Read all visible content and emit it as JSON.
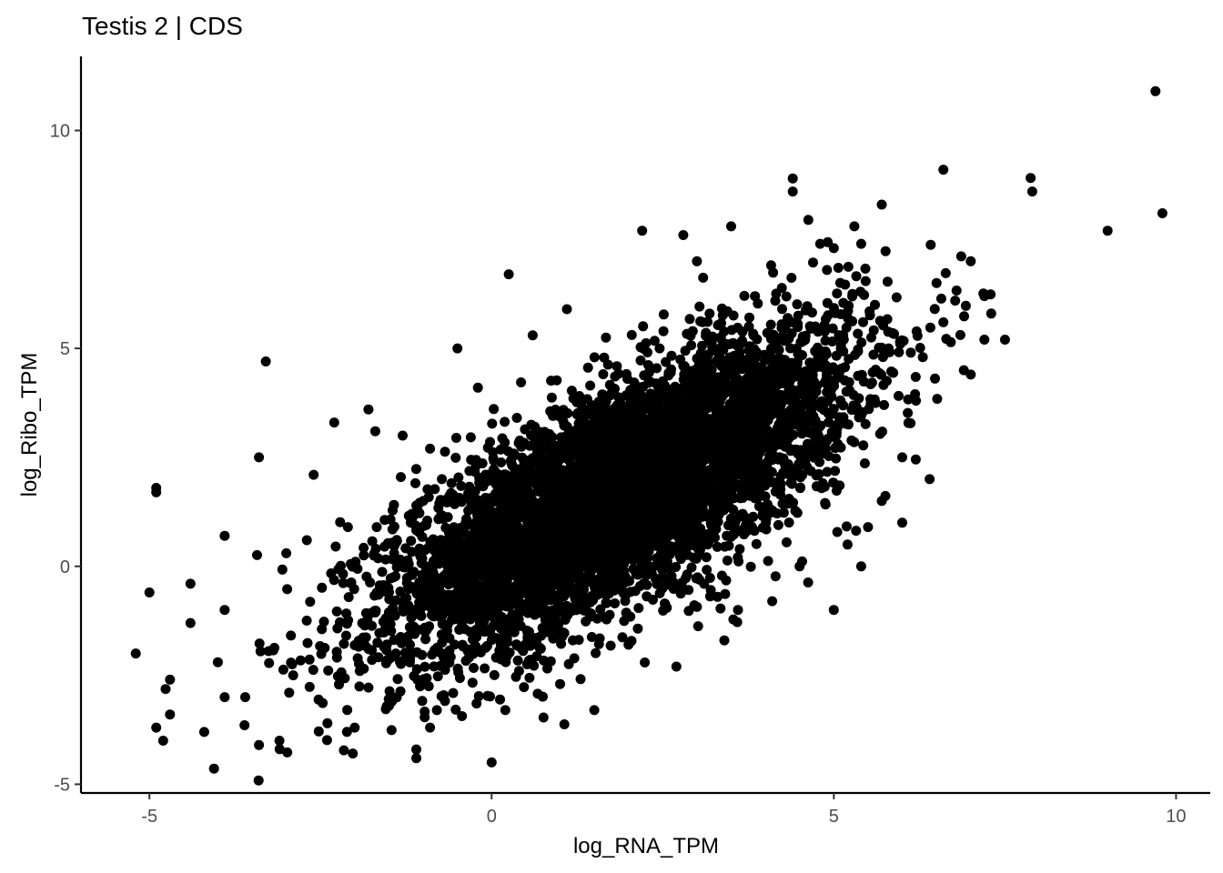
{
  "chart_data": {
    "type": "scatter",
    "title": "Testis 2 | CDS",
    "xlabel": "log_RNA_TPM",
    "ylabel": "log_Ribo_TPM",
    "xlim": [
      -6.0,
      10.5
    ],
    "ylim": [
      -5.2,
      11.7
    ],
    "x_ticks": [
      -5,
      0,
      5,
      10
    ],
    "y_ticks": [
      -5,
      0,
      5,
      10
    ],
    "x_tick_labels": [
      "-5",
      "0",
      "5",
      "10"
    ],
    "y_tick_labels": [
      "-5",
      "0",
      "5",
      "10"
    ],
    "grid": false,
    "legend": "none",
    "point_color": "#000000",
    "dense_cloud": {
      "description_note": "",
      "n_points": 6000,
      "center_x": 1.9,
      "center_y": 1.7,
      "sd_x": 1.65,
      "sd_y": 1.75,
      "correlation": 0.72
    },
    "points": [
      [
        9.7,
        10.9
      ],
      [
        9.8,
        8.1
      ],
      [
        9.0,
        7.7
      ],
      [
        7.9,
        8.6
      ],
      [
        6.6,
        9.1
      ],
      [
        4.4,
        8.9
      ],
      [
        4.4,
        8.6
      ],
      [
        2.8,
        7.6
      ],
      [
        2.2,
        7.7
      ],
      [
        3.5,
        7.8
      ],
      [
        0.25,
        6.7
      ],
      [
        7.0,
        7.0
      ],
      [
        6.5,
        6.5
      ],
      [
        7.2,
        6.2
      ],
      [
        7.3,
        5.8
      ],
      [
        7.5,
        5.2
      ],
      [
        7.2,
        5.2
      ],
      [
        7.0,
        4.4
      ],
      [
        6.9,
        4.5
      ],
      [
        6.6,
        5.6
      ],
      [
        6.3,
        4.8
      ],
      [
        6.4,
        2.0
      ],
      [
        6.0,
        1.0
      ],
      [
        5.5,
        0.9
      ],
      [
        5.4,
        0.0
      ],
      [
        5.0,
        -1.0
      ],
      [
        4.1,
        -0.8
      ],
      [
        3.6,
        -1.0
      ],
      [
        3.4,
        -1.7
      ],
      [
        2.7,
        -2.3
      ],
      [
        1.5,
        -3.3
      ],
      [
        0.0,
        -4.5
      ],
      [
        -1.1,
        -4.2
      ],
      [
        -1.1,
        -4.4
      ],
      [
        -0.9,
        -3.7
      ],
      [
        -3.4,
        -4.1
      ],
      [
        -3.1,
        -4.0
      ],
      [
        -4.2,
        -3.8
      ],
      [
        -4.8,
        -4.0
      ],
      [
        -4.7,
        -3.4
      ],
      [
        -4.7,
        -2.6
      ],
      [
        -5.2,
        -2.0
      ],
      [
        -5.0,
        -0.6
      ],
      [
        -4.9,
        1.8
      ],
      [
        -4.9,
        1.7
      ],
      [
        -3.3,
        4.7
      ],
      [
        -3.4,
        2.5
      ],
      [
        -2.3,
        3.3
      ],
      [
        -1.8,
        3.6
      ],
      [
        -1.7,
        3.1
      ],
      [
        -0.5,
        5.0
      ],
      [
        -0.9,
        2.7
      ],
      [
        -1.3,
        3.0
      ],
      [
        -2.6,
        2.1
      ],
      [
        -3.9,
        0.7
      ],
      [
        -4.4,
        -0.4
      ],
      [
        -4.4,
        -1.3
      ],
      [
        -4.0,
        -2.2
      ],
      [
        -3.6,
        -3.0
      ],
      [
        -2.4,
        -3.6
      ],
      [
        -2.0,
        -3.7
      ],
      [
        -2.9,
        -2.5
      ],
      [
        -3.9,
        -1.0
      ],
      [
        -3.0,
        0.3
      ],
      [
        -2.7,
        0.6
      ],
      [
        -3.9,
        -3.0
      ],
      [
        -4.9,
        -3.7
      ],
      [
        -1.5,
        -3.2
      ],
      [
        -0.8,
        -3.3
      ],
      [
        0.2,
        -3.3
      ],
      [
        1.0,
        -2.7
      ],
      [
        2.0,
        -1.8
      ],
      [
        3.3,
        -0.7
      ],
      [
        5.0,
        4.5
      ],
      [
        5.8,
        5.0
      ],
      [
        6.2,
        3.8
      ],
      [
        6.0,
        2.5
      ],
      [
        5.7,
        1.5
      ],
      [
        5.2,
        0.5
      ],
      [
        4.5,
        0.0
      ],
      [
        4.9,
        6.8
      ],
      [
        5.3,
        7.8
      ],
      [
        5.0,
        7.3
      ],
      [
        4.8,
        7.4
      ],
      [
        5.4,
        7.4
      ],
      [
        5.7,
        8.3
      ],
      [
        5.6,
        6.0
      ],
      [
        3.0,
        7.0
      ],
      [
        1.1,
        5.9
      ],
      [
        0.6,
        5.3
      ],
      [
        -0.2,
        4.1
      ],
      [
        -1.0,
        1.5
      ],
      [
        -2.1,
        0.9
      ],
      [
        -1.4,
        -2.0
      ],
      [
        0.4,
        -2.4
      ]
    ]
  }
}
